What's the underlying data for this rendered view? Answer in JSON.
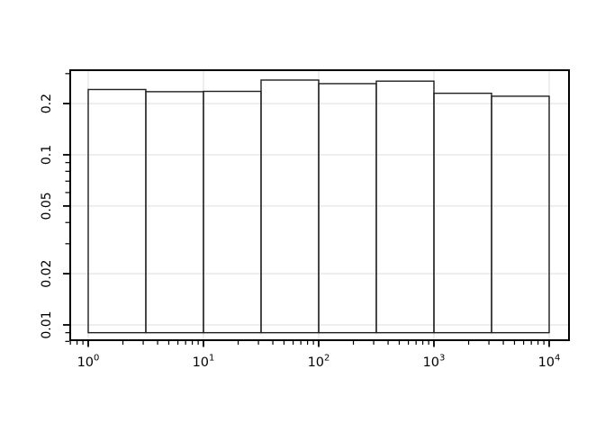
{
  "chart_data": {
    "type": "bar",
    "subtype": "histogram",
    "title": "",
    "xlabel": "",
    "ylabel": "",
    "x_scale": "log10",
    "y_scale": "log10",
    "grid": true,
    "legend": false,
    "colors": {
      "background": "#ffffff",
      "frame": "#000000",
      "grid": "#e8e8e8",
      "bar_stroke": "#1f1f1f",
      "bar_fill": "none",
      "tick": "#000000",
      "text": "#000000"
    },
    "xlim": [
      0.698,
      14857
    ],
    "ylim": [
      0.00813,
      0.3143
    ],
    "bins": {
      "breaks": [
        1,
        3.162,
        10,
        31.62,
        100,
        316.2,
        1000,
        3162,
        10000
      ],
      "densities": [
        0.242,
        0.235,
        0.236,
        0.275,
        0.262,
        0.271,
        0.23,
        0.221
      ],
      "base_value": 0.009
    },
    "x_axis": {
      "major_ticks": [
        {
          "value": 1,
          "label_base": "10",
          "label_exp": "0"
        },
        {
          "value": 10,
          "label_base": "10",
          "label_exp": "1"
        },
        {
          "value": 100,
          "label_base": "10",
          "label_exp": "2"
        },
        {
          "value": 1000,
          "label_base": "10",
          "label_exp": "3"
        },
        {
          "value": 10000,
          "label_base": "10",
          "label_exp": "4"
        }
      ],
      "minor_ticks": [
        0.7,
        0.8,
        0.9,
        2,
        3,
        4,
        5,
        6,
        7,
        8,
        9,
        20,
        30,
        40,
        50,
        60,
        70,
        80,
        90,
        200,
        300,
        400,
        500,
        600,
        700,
        800,
        900,
        2000,
        3000,
        4000,
        5000,
        6000,
        7000,
        8000,
        9000
      ]
    },
    "y_axis": {
      "major_ticks": [
        {
          "value": 0.2,
          "label": "0.2"
        },
        {
          "value": 0.1,
          "label": "0.1"
        },
        {
          "value": 0.05,
          "label": "0.05"
        },
        {
          "value": 0.02,
          "label": "0.02"
        },
        {
          "value": 0.01,
          "label": "0.01"
        }
      ],
      "minor_ticks": [
        0.3,
        0.09,
        0.08,
        0.07,
        0.06,
        0.04,
        0.03,
        0.009,
        0.008
      ]
    }
  }
}
